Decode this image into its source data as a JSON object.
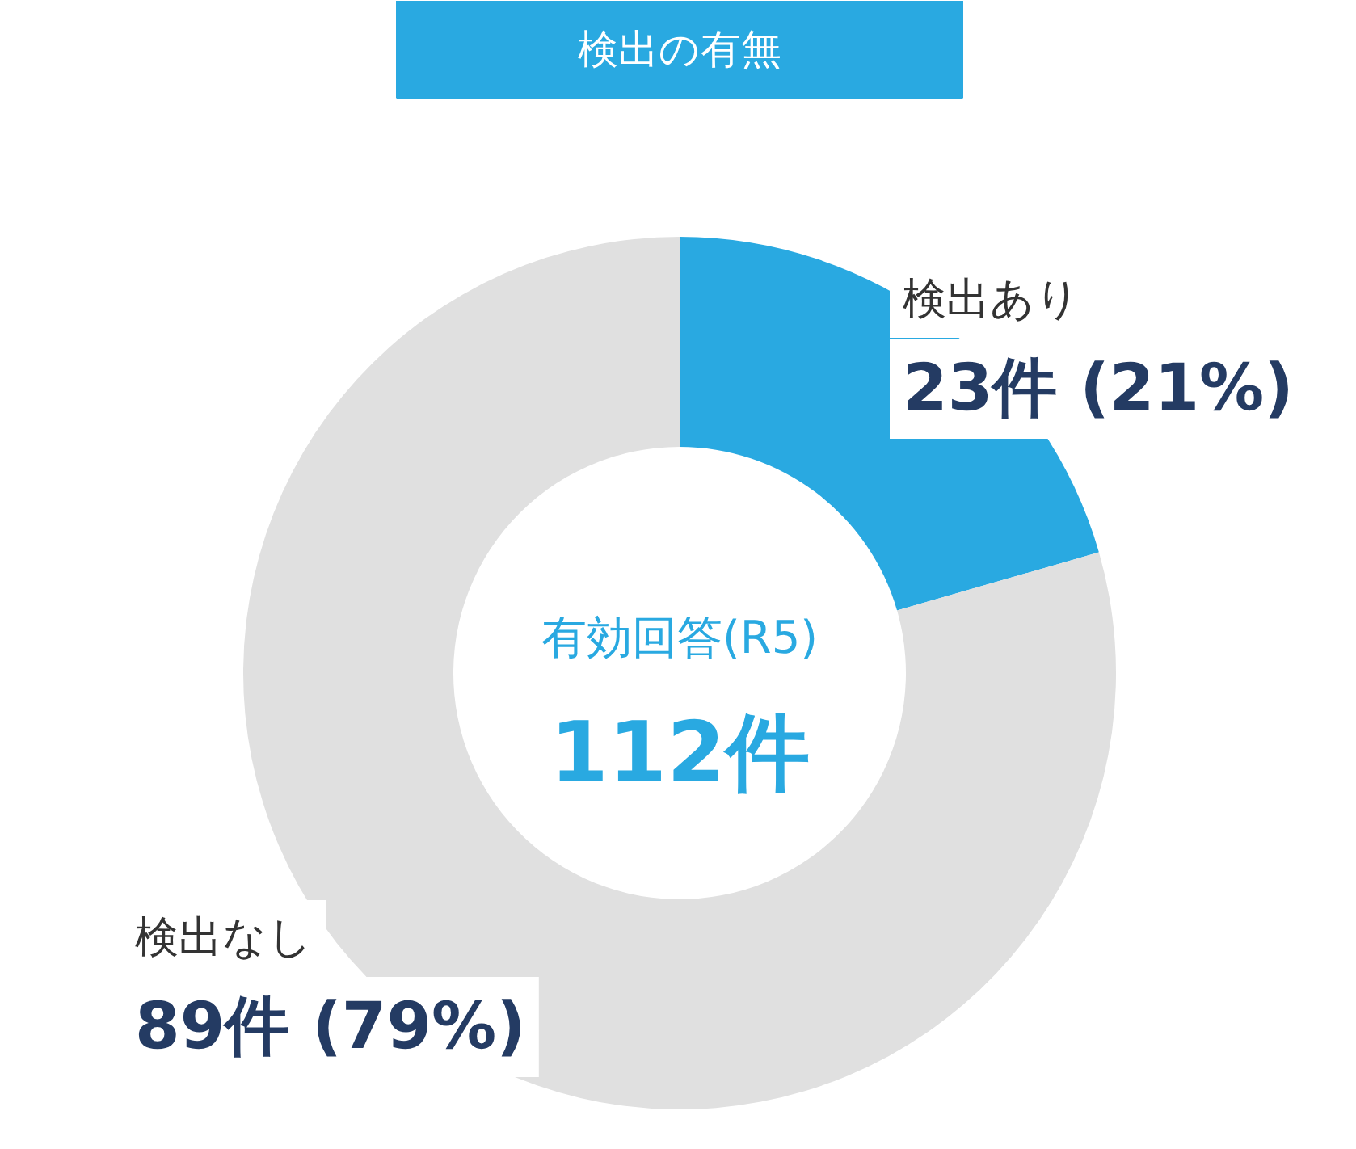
{
  "chart_data": {
    "type": "donut",
    "title": "検出の有無",
    "categories": [
      "検出あり",
      "検出なし"
    ],
    "values": [
      23,
      89
    ],
    "colors": [
      "#29a9e1",
      "#e0e0e0"
    ],
    "value_labels": [
      "23件 (21%)",
      "89件 (79%)"
    ],
    "annotations": [
      "有効回答(R5)",
      "112件"
    ]
  }
}
